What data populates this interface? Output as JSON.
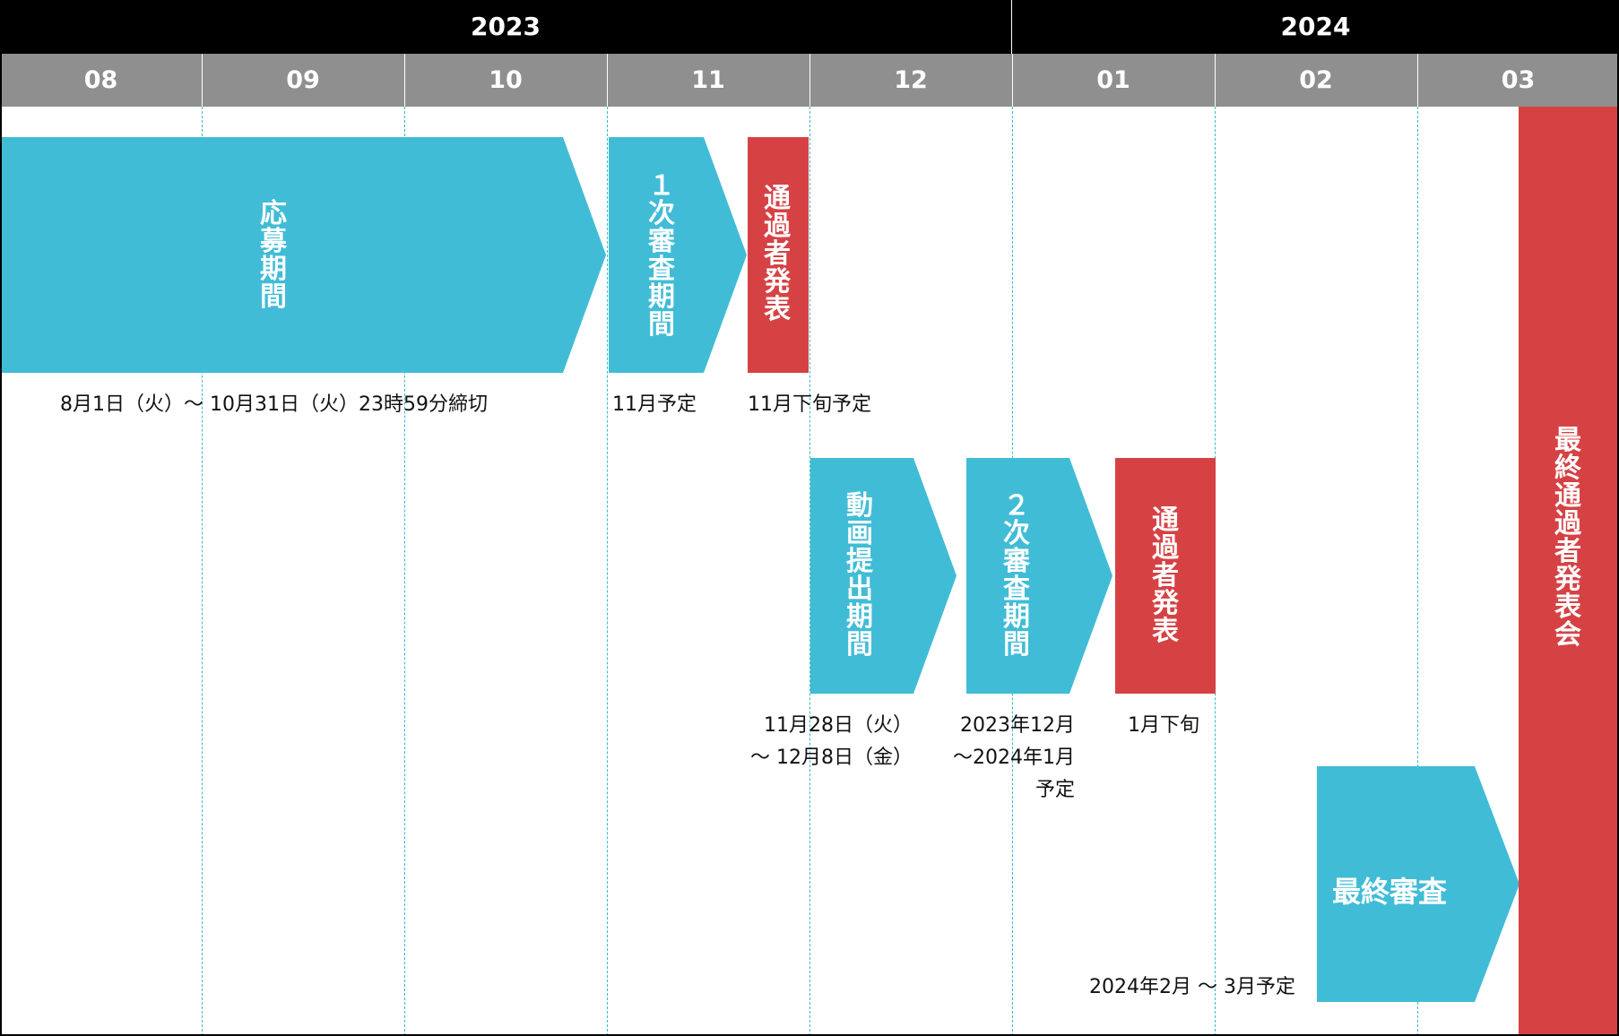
{
  "colors": {
    "header_years": "#000000",
    "header_months": "#8f8f8f",
    "arrow": "#41bcd6",
    "milestone": "#d64244",
    "gridline": "#3ab8d1"
  },
  "years": [
    "2023",
    "2024"
  ],
  "months": [
    "08",
    "09",
    "10",
    "11",
    "12",
    "01",
    "02",
    "03"
  ],
  "row1": {
    "application": {
      "label": "応募期間",
      "note": "8月1日（火）～ 10月31日（火）23時59分締切"
    },
    "first_review": {
      "label": "１次審査期間",
      "note": "11月予定"
    },
    "first_announce": {
      "label": "通過者発表",
      "note": "11月下旬予定"
    }
  },
  "row2": {
    "video": {
      "label": "動画提出期間",
      "note_line1": "11月28日（火）",
      "note_line2": "～ 12月8日（金）"
    },
    "second_review": {
      "label": "２次審査期間",
      "note_line1": "2023年12月",
      "note_line2": "～2024年1月",
      "note_line3": "予定"
    },
    "second_announce": {
      "label": "通過者発表",
      "note": "1月下旬"
    }
  },
  "row3": {
    "final_review": {
      "label": "最終審査",
      "note": "2024年2月 ～ 3月予定"
    }
  },
  "final_event": {
    "label": "最終通過者発表会"
  }
}
